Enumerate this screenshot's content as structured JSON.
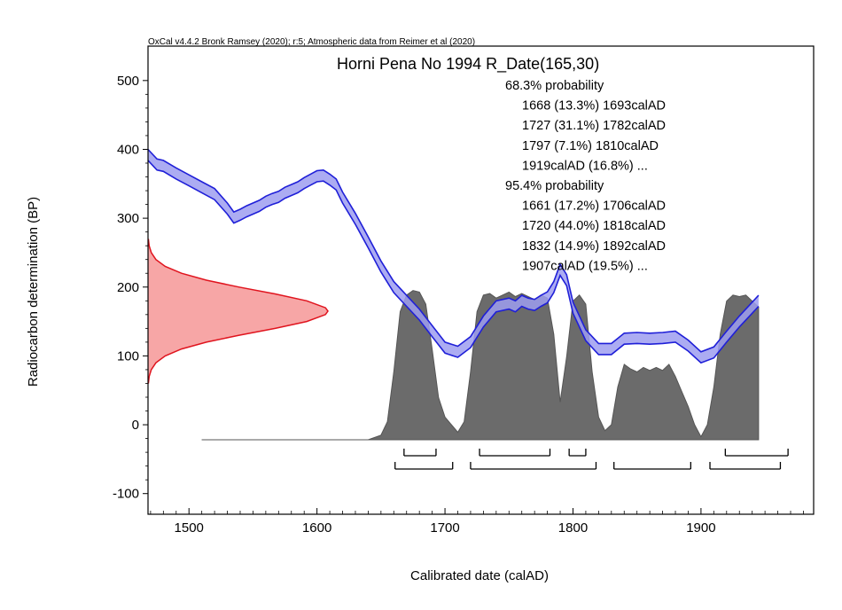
{
  "chart_data": {
    "type": "area",
    "title": "Horni Pena No 1994 R_Date(165,30)",
    "credit": "OxCal v4.4.2 Bronk Ramsey (2020); r:5; Atmospheric data from Reimer et al (2020)",
    "xlabel": "Calibrated date (calAD)",
    "ylabel": "Radiocarbon determination (BP)",
    "xlim": [
      1468,
      1988
    ],
    "ylim": [
      -130,
      550
    ],
    "x_ticks": [
      1500,
      1600,
      1700,
      1800,
      1900
    ],
    "y_ticks": [
      500,
      400,
      300,
      200,
      100,
      0,
      -100
    ],
    "grid": false,
    "colors": {
      "curve_stroke": "#1f1fd8",
      "curve_fill": "#9e9ef0",
      "measurement_stroke": "#e0141e",
      "measurement_fill": "#f7a6a6",
      "posterior_fill": "#6b6b6b",
      "posterior_stroke": "#555555"
    },
    "summary_lines": [
      {
        "text": "68.3% probability",
        "indent": false
      },
      {
        "text": "1668 (13.3%) 1693calAD",
        "indent": true
      },
      {
        "text": "1727 (31.1%) 1782calAD",
        "indent": true
      },
      {
        "text": "1797 (7.1%) 1810calAD",
        "indent": true
      },
      {
        "text": "1919calAD (16.8%) ...",
        "indent": true
      },
      {
        "text": "95.4% probability",
        "indent": false
      },
      {
        "text": "1661 (17.2%) 1706calAD",
        "indent": true
      },
      {
        "text": "1720 (44.0%) 1818calAD",
        "indent": true
      },
      {
        "text": "1832 (14.9%) 1892calAD",
        "indent": true
      },
      {
        "text": "1907calAD (19.5%) ...",
        "indent": true
      }
    ],
    "measurement": {
      "mean_bp": 165,
      "sd_bp": 30
    },
    "calibration_curve": {
      "x": [
        1468,
        1475,
        1480,
        1490,
        1500,
        1510,
        1520,
        1530,
        1535,
        1540,
        1545,
        1550,
        1555,
        1560,
        1565,
        1570,
        1575,
        1580,
        1585,
        1590,
        1595,
        1600,
        1605,
        1610,
        1615,
        1620,
        1630,
        1640,
        1650,
        1660,
        1670,
        1680,
        1690,
        1700,
        1710,
        1720,
        1730,
        1740,
        1750,
        1755,
        1760,
        1765,
        1770,
        1775,
        1780,
        1785,
        1790,
        1795,
        1800,
        1810,
        1820,
        1830,
        1840,
        1850,
        1860,
        1870,
        1880,
        1890,
        1900,
        1910,
        1920,
        1930,
        1940,
        1945
      ],
      "y": [
        392,
        378,
        376,
        365,
        355,
        345,
        335,
        314,
        301,
        305,
        310,
        314,
        318,
        324,
        328,
        331,
        337,
        341,
        345,
        351,
        356,
        361,
        362,
        356,
        349,
        330,
        299,
        265,
        230,
        200,
        180,
        160,
        136,
        112,
        106,
        120,
        150,
        172,
        176,
        172,
        180,
        176,
        174,
        180,
        185,
        200,
        225,
        210,
        170,
        130,
        110,
        110,
        125,
        126,
        125,
        126,
        128,
        115,
        98,
        105,
        128,
        150,
        170,
        180
      ],
      "half_width": 8
    },
    "measurement_curve_bp": [
      60,
      70,
      80,
      90,
      100,
      110,
      120,
      130,
      140,
      150,
      160,
      165,
      170,
      180,
      190,
      200,
      210,
      220,
      230,
      240,
      250,
      260,
      270
    ],
    "posterior": {
      "x": [
        1510,
        1640,
        1650,
        1655,
        1660,
        1665,
        1670,
        1675,
        1680,
        1685,
        1690,
        1695,
        1700,
        1705,
        1710,
        1715,
        1720,
        1725,
        1730,
        1735,
        1740,
        1745,
        1750,
        1755,
        1760,
        1765,
        1770,
        1775,
        1780,
        1785,
        1790,
        1795,
        1800,
        1805,
        1810,
        1815,
        1820,
        1825,
        1830,
        1835,
        1840,
        1845,
        1850,
        1855,
        1860,
        1865,
        1870,
        1875,
        1880,
        1885,
        1890,
        1895,
        1900,
        1905,
        1910,
        1915,
        1920,
        1925,
        1930,
        1935,
        1940,
        1945
      ],
      "density": [
        0,
        0,
        0.03,
        0.12,
        0.45,
        0.85,
        0.96,
        0.99,
        0.98,
        0.9,
        0.6,
        0.28,
        0.15,
        0.1,
        0.05,
        0.12,
        0.45,
        0.85,
        0.96,
        0.97,
        0.94,
        0.96,
        0.98,
        0.95,
        0.97,
        0.95,
        0.93,
        0.96,
        0.94,
        0.7,
        0.25,
        0.55,
        0.92,
        0.96,
        0.9,
        0.45,
        0.15,
        0.06,
        0.1,
        0.35,
        0.5,
        0.47,
        0.45,
        0.48,
        0.46,
        0.48,
        0.46,
        0.5,
        0.42,
        0.32,
        0.22,
        0.1,
        0.02,
        0.1,
        0.35,
        0.7,
        0.92,
        0.96,
        0.95,
        0.96,
        0.92,
        0.88
      ]
    },
    "range_bars_68": [
      [
        1668,
        1693
      ],
      [
        1727,
        1782
      ],
      [
        1797,
        1810
      ],
      [
        1919,
        1968
      ]
    ],
    "range_bars_95": [
      [
        1661,
        1706
      ],
      [
        1720,
        1818
      ],
      [
        1832,
        1892
      ],
      [
        1907,
        1962
      ]
    ]
  }
}
